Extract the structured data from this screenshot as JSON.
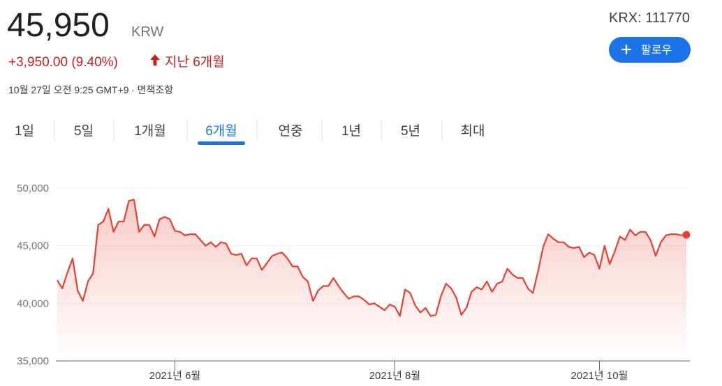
{
  "header": {
    "price": "45,950",
    "currency": "KRW",
    "exchange": "KRX: 111770",
    "follow": "팔로우",
    "change": "+3,950.00 (9.40%)",
    "period": "지난 6개월",
    "timestamp": "10월 27일 오전 9:25 GMT+9",
    "disclaimer": "· 면책조항"
  },
  "tabs": {
    "items": [
      "1일",
      "5일",
      "1개월",
      "6개월",
      "연중",
      "1년",
      "5년",
      "최대"
    ],
    "active": 3
  },
  "chart_data": {
    "type": "line",
    "color": "#e34133",
    "values": [
      42000,
      41300,
      42700,
      43900,
      41100,
      40200,
      41900,
      42600,
      46800,
      47100,
      48200,
      46200,
      47100,
      47100,
      48900,
      49000,
      46200,
      46800,
      46800,
      45800,
      47300,
      47500,
      47300,
      46300,
      46200,
      45900,
      46000,
      46000,
      45500,
      45000,
      45300,
      44900,
      45300,
      45200,
      44300,
      44200,
      44300,
      43300,
      43900,
      43900,
      42900,
      43500,
      44100,
      44300,
      44400,
      43900,
      43200,
      43200,
      42300,
      41900,
      40200,
      41100,
      41500,
      41500,
      42200,
      41500,
      40900,
      40400,
      40600,
      40600,
      40300,
      39900,
      40000,
      39700,
      39400,
      39900,
      39700,
      38900,
      41200,
      40900,
      39800,
      39200,
      39600,
      38900,
      39000,
      40600,
      41700,
      41300,
      40500,
      39000,
      39600,
      41000,
      41400,
      41200,
      41900,
      41000,
      41700,
      41900,
      43000,
      42500,
      42200,
      42200,
      41300,
      40900,
      42800,
      44900,
      46000,
      45600,
      45300,
      45300,
      44900,
      44800,
      44900,
      44000,
      44400,
      44200,
      43000,
      45000,
      43400,
      44500,
      45800,
      45500,
      46400,
      45900,
      46200,
      46200,
      45500,
      44100,
      45300,
      45900,
      46000,
      46000,
      45900,
      45950
    ],
    "xlim": [
      0,
      123
    ],
    "xticks": [
      {
        "value": 23,
        "label": "2021년 6월"
      },
      {
        "value": 66,
        "label": "2021년 8월"
      },
      {
        "value": 106,
        "label": "2021년 10월"
      }
    ],
    "ylim": [
      35000,
      50000
    ],
    "yticks": [
      {
        "value": 35000,
        "label": "35,000"
      },
      {
        "value": 40000,
        "label": "40,000"
      },
      {
        "value": 45000,
        "label": "45,000"
      },
      {
        "value": 50000,
        "label": "50,000"
      }
    ],
    "grid": true
  }
}
